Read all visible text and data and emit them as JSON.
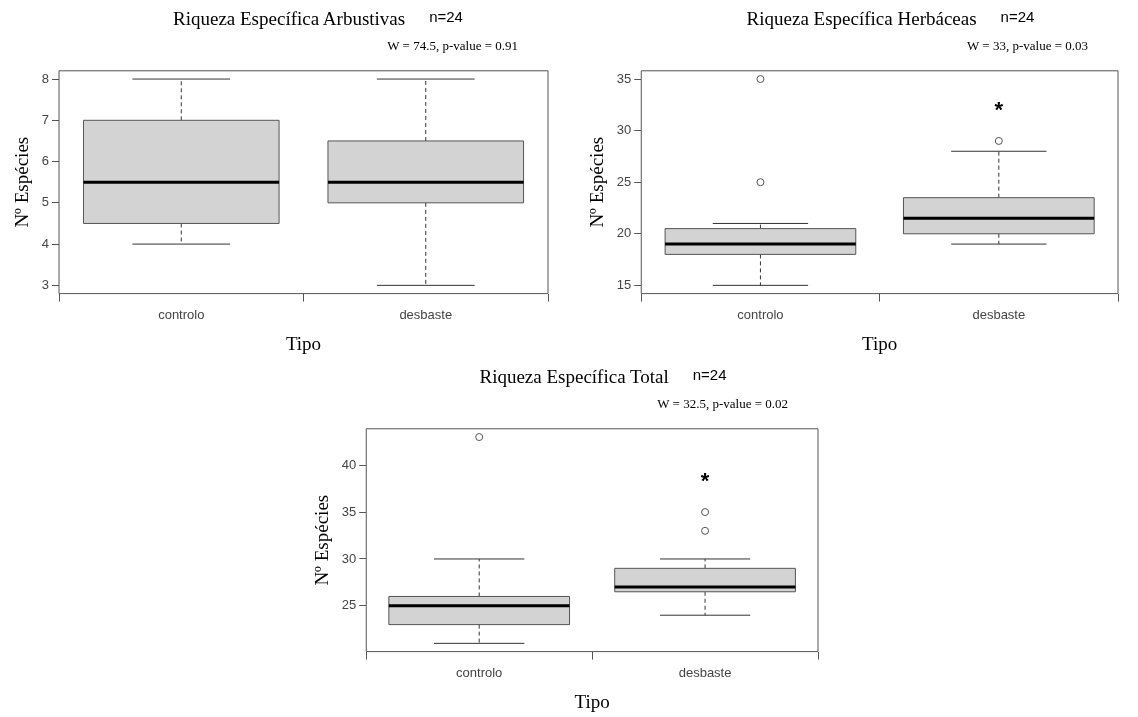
{
  "chart_data": [
    {
      "type": "box",
      "title": "Riqueza Específica Arbustivas",
      "subtitle": "W = 74.5, p-value = 0.91",
      "annotations": [
        "n=24"
      ],
      "xlabel": "Tipo",
      "ylabel": "Nº Espécies",
      "categories": [
        "controlo",
        "desbaste"
      ],
      "ylim": [
        2.8,
        8.2
      ],
      "yticks": [
        3,
        4,
        5,
        6,
        7,
        8
      ],
      "series": [
        {
          "color": "#d3d3d3",
          "boxes": [
            {
              "low": 4,
              "q1": 4.5,
              "median": 5.5,
              "q3": 7,
              "high": 8
            },
            {
              "low": 3,
              "q1": 5,
              "median": 5.5,
              "q3": 6.5,
              "high": 8
            }
          ]
        }
      ]
    },
    {
      "type": "box",
      "title": "Riqueza Específica Herbáceas",
      "subtitle": "W = 33, p-value = 0.03",
      "annotations": [
        "n=24",
        "*"
      ],
      "xlabel": "Tipo",
      "ylabel": "Nº Espécies",
      "categories": [
        "controlo",
        "desbaste"
      ],
      "ylim": [
        14.2,
        35.8
      ],
      "yticks": [
        15,
        20,
        25,
        30,
        35
      ],
      "series": [
        {
          "color": "#d3d3d3",
          "boxes": [
            {
              "low": 15,
              "q1": 18,
              "median": 19,
              "q3": 20.5,
              "high": 21,
              "outliers": [
                25,
                35
              ]
            },
            {
              "low": 19,
              "q1": 20,
              "median": 21.5,
              "q3": 23.5,
              "high": 28,
              "outliers": [
                29
              ]
            }
          ]
        }
      ]
    },
    {
      "type": "box",
      "title": "Riqueza Específica Total",
      "subtitle": "W = 32.5, p-value = 0.02",
      "annotations": [
        "n=24",
        "*"
      ],
      "xlabel": "Tipo",
      "ylabel": "Nº Espécies",
      "categories": [
        "controlo",
        "desbaste"
      ],
      "ylim": [
        20.12,
        43.88
      ],
      "yticks": [
        25,
        30,
        35,
        40
      ],
      "series": [
        {
          "color": "#d3d3d3",
          "boxes": [
            {
              "low": 21,
              "q1": 23,
              "median": 25,
              "q3": 26,
              "high": 30,
              "outliers": [
                43
              ]
            },
            {
              "low": 24,
              "q1": 26.5,
              "median": 27,
              "q3": 29,
              "high": 30,
              "outliers": [
                33,
                35
              ]
            }
          ]
        }
      ]
    }
  ]
}
